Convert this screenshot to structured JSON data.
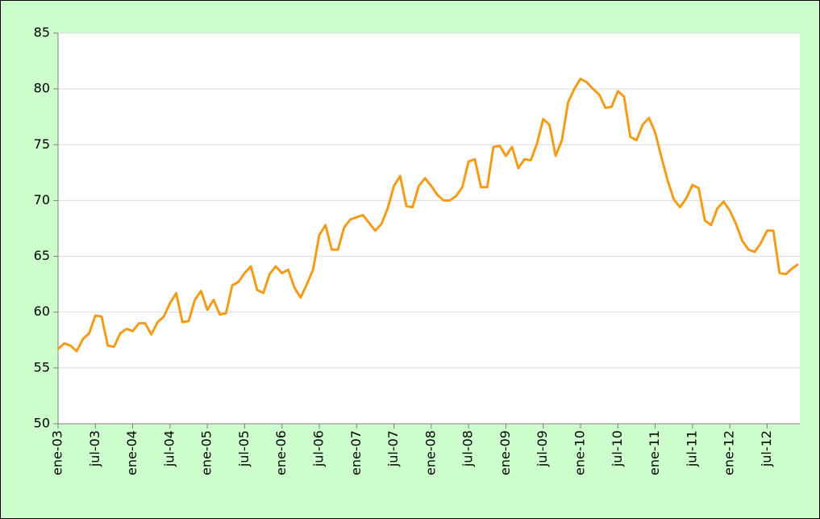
{
  "chart_data": {
    "type": "line",
    "categories": [
      "ene-03",
      null,
      null,
      null,
      null,
      null,
      "jul-03",
      null,
      null,
      null,
      null,
      null,
      "ene-04",
      null,
      null,
      null,
      null,
      null,
      "jul-04",
      null,
      null,
      null,
      null,
      null,
      "ene-05",
      null,
      null,
      null,
      null,
      null,
      "jul-05",
      null,
      null,
      null,
      null,
      null,
      "ene-06",
      null,
      null,
      null,
      null,
      null,
      "jul-06",
      null,
      null,
      null,
      null,
      null,
      "ene-07",
      null,
      null,
      null,
      null,
      null,
      "jul-07",
      null,
      null,
      null,
      null,
      null,
      "ene-08",
      null,
      null,
      null,
      null,
      null,
      "jul-08",
      null,
      null,
      null,
      null,
      null,
      "ene-09",
      null,
      null,
      null,
      null,
      null,
      "jul-09",
      null,
      null,
      null,
      null,
      null,
      "ene-10",
      null,
      null,
      null,
      null,
      null,
      "jul-10",
      null,
      null,
      null,
      null,
      null,
      "ene-11",
      null,
      null,
      null,
      null,
      null,
      "jul-11",
      null,
      null,
      null,
      null,
      null,
      "ene-12",
      null,
      null,
      null,
      null,
      null,
      "jul-12",
      null,
      null,
      null,
      null,
      null
    ],
    "values": [
      56.7,
      57.2,
      57.0,
      56.5,
      57.6,
      58.1,
      59.7,
      59.6,
      57.0,
      56.9,
      58.1,
      58.5,
      58.3,
      59.0,
      59.0,
      58.0,
      59.1,
      59.6,
      60.8,
      61.7,
      59.1,
      59.2,
      61.1,
      61.9,
      60.2,
      61.1,
      59.8,
      59.9,
      62.4,
      62.7,
      63.5,
      64.1,
      62.0,
      61.7,
      63.4,
      64.1,
      63.5,
      63.8,
      62.2,
      61.3,
      62.5,
      63.8,
      66.9,
      67.8,
      65.6,
      65.6,
      67.6,
      68.3,
      68.5,
      68.7,
      68.0,
      67.3,
      67.9,
      69.3,
      71.3,
      72.2,
      69.5,
      69.4,
      71.3,
      72.0,
      71.3,
      70.5,
      70.0,
      70.0,
      70.4,
      71.2,
      73.5,
      73.7,
      71.2,
      71.2,
      74.8,
      74.9,
      74.0,
      74.8,
      72.9,
      73.7,
      73.6,
      75.1,
      77.3,
      76.8,
      74.0,
      75.4,
      78.8,
      80.0,
      80.9,
      80.6,
      80.0,
      79.5,
      78.3,
      78.4,
      79.8,
      79.3,
      75.7,
      75.4,
      76.8,
      77.4,
      76.1,
      73.9,
      71.8,
      70.1,
      69.4,
      70.2,
      71.4,
      71.1,
      68.2,
      67.8,
      69.3,
      69.9,
      69.1,
      67.9,
      66.4,
      65.6,
      65.4,
      66.2,
      67.3,
      67.3,
      63.5,
      63.4,
      63.9,
      64.3
    ],
    "color": "#f39c1a",
    "ylim": [
      50,
      85
    ],
    "yticks": [
      50,
      55,
      60,
      65,
      70,
      75,
      80,
      85
    ],
    "grid": true
  }
}
